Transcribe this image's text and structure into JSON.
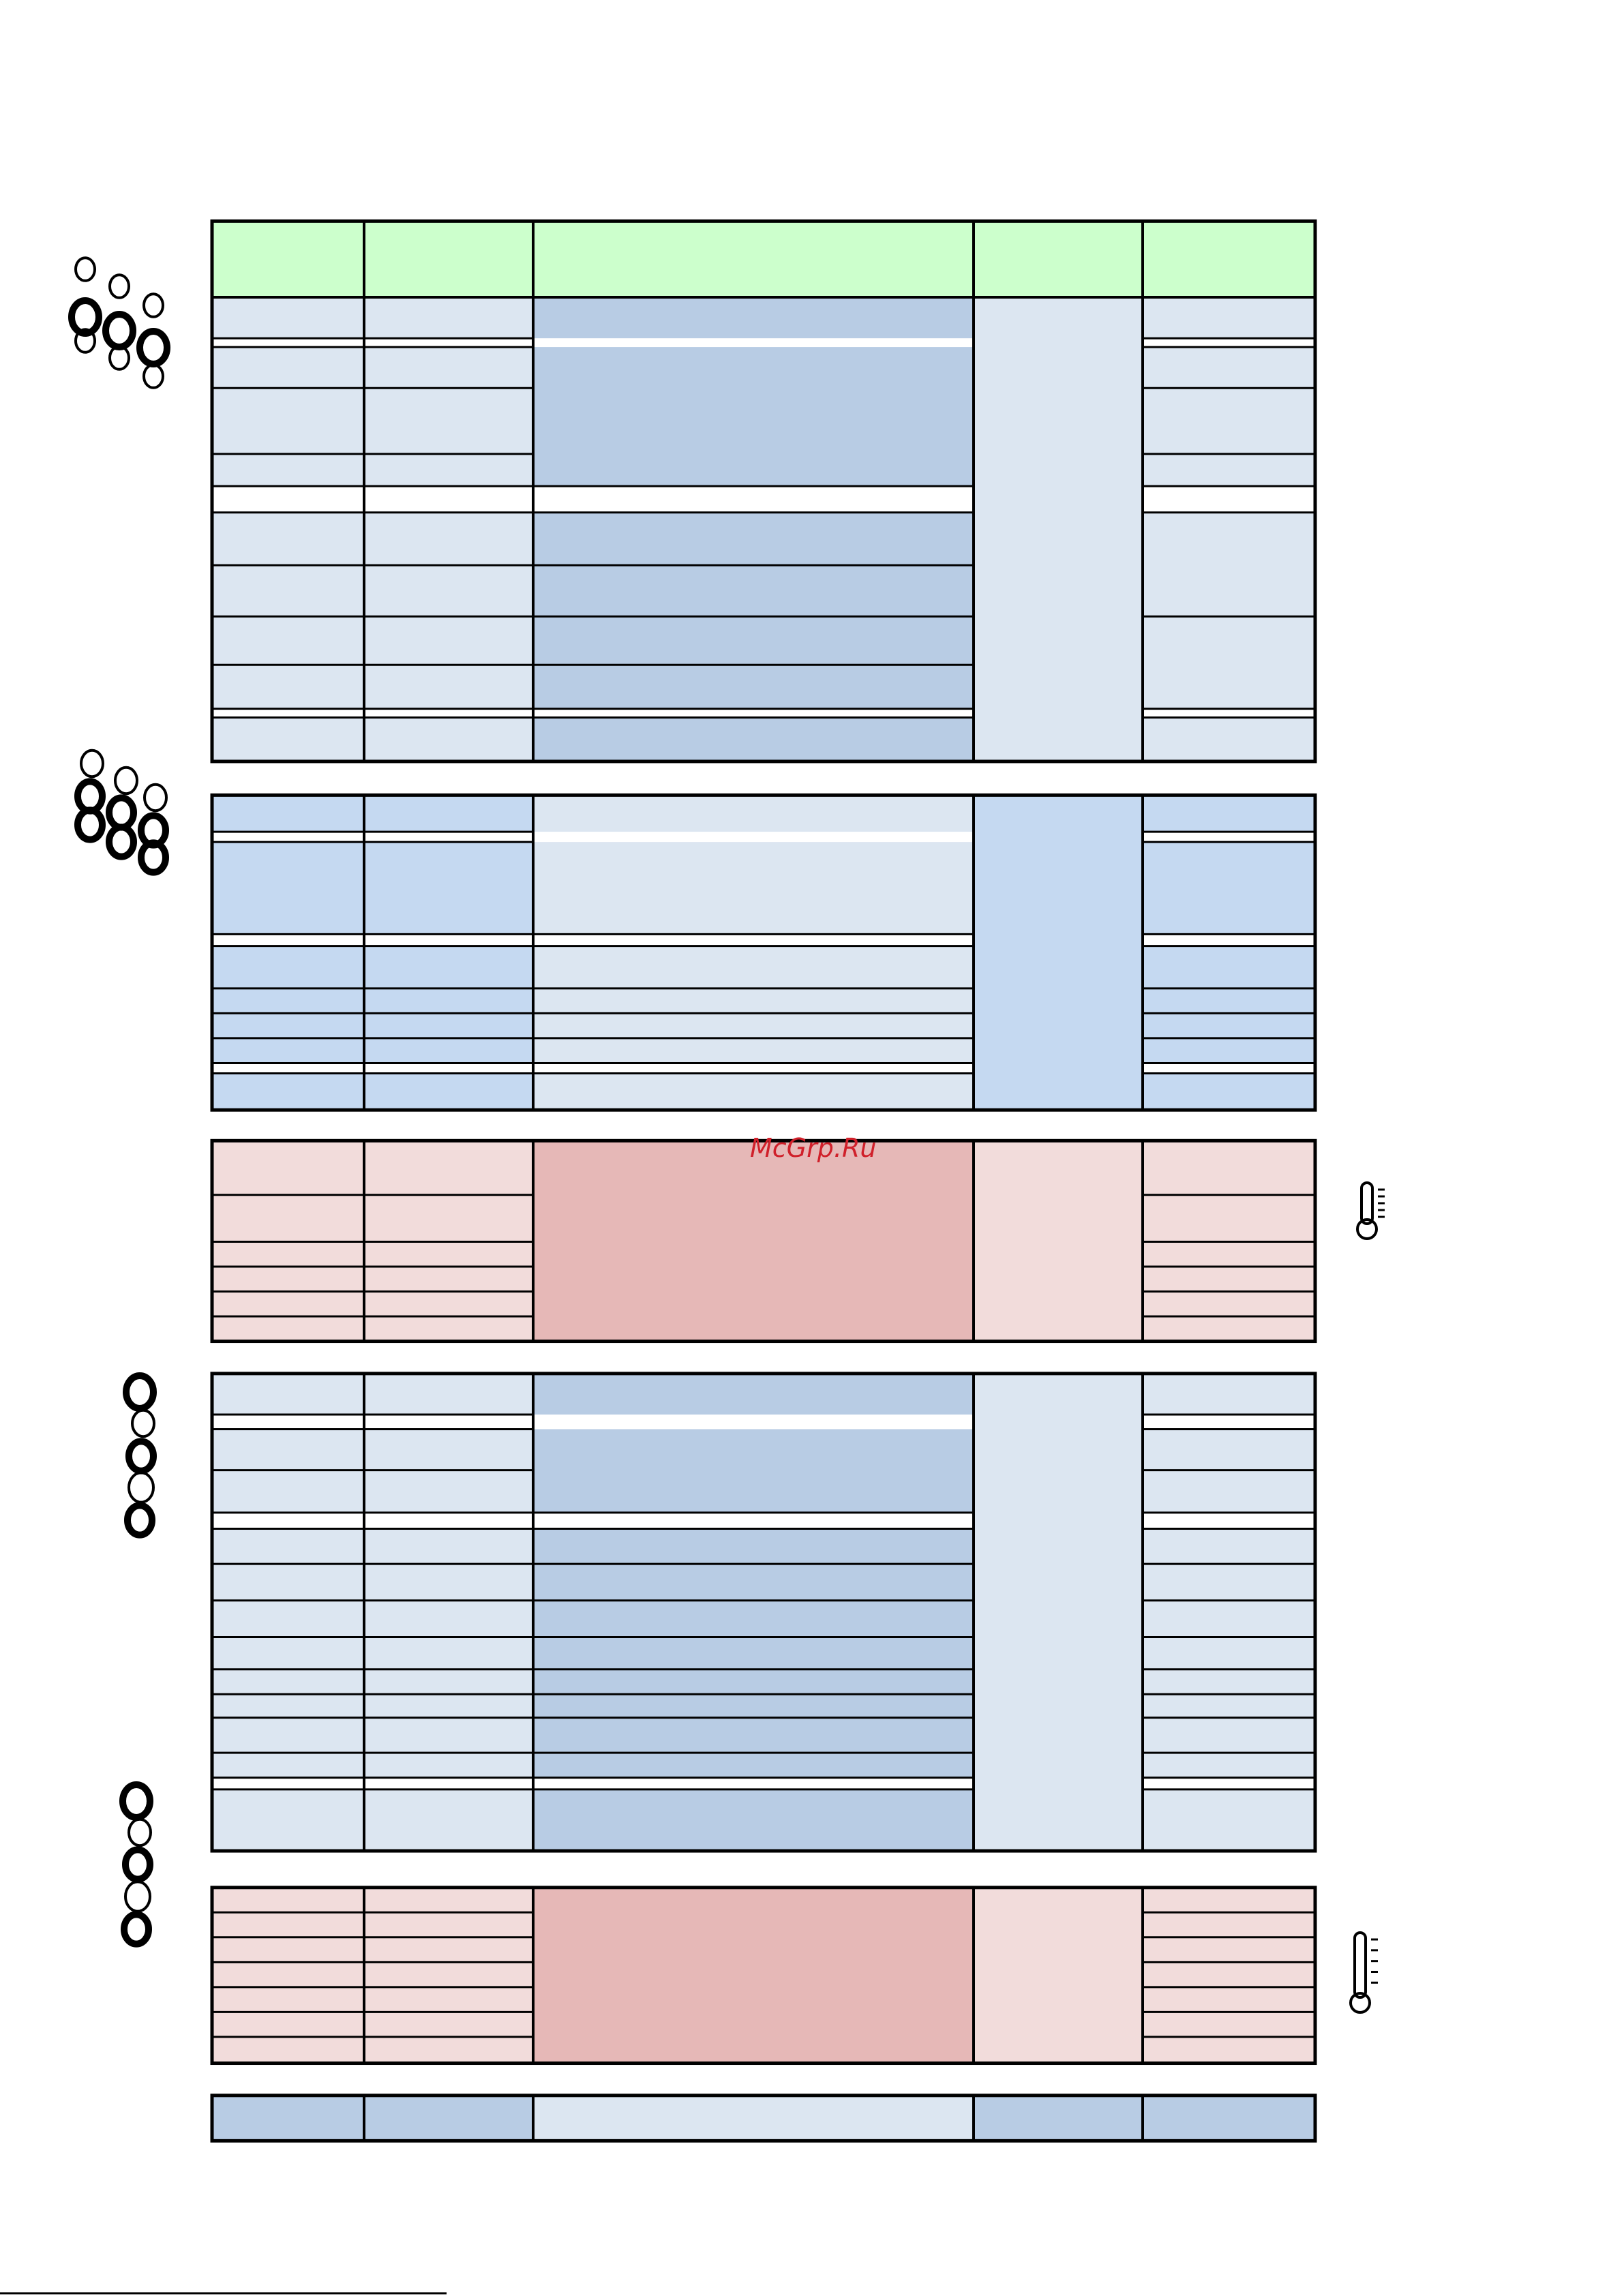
{
  "watermark": "McGrp.Ru"
}
